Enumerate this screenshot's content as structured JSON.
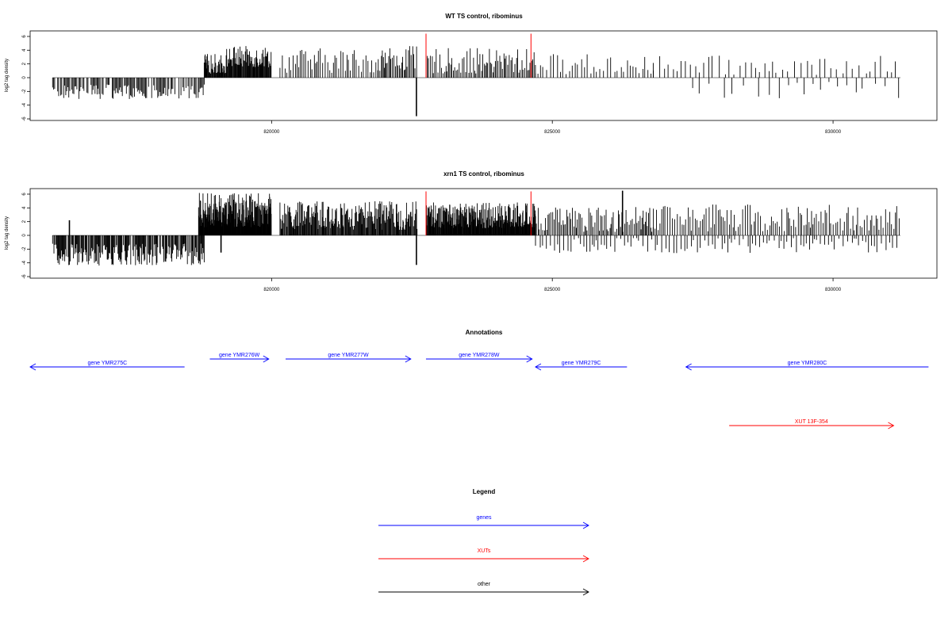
{
  "chart_data": [
    {
      "type": "bar",
      "title": "WT TS control, ribominus",
      "ylabel": "log2 tag density",
      "ylim": [
        -6,
        7
      ],
      "yticks": [
        -6,
        -4,
        -2,
        0,
        2,
        4,
        6
      ],
      "xlim": [
        815700,
        831850
      ],
      "xticks": [
        820000,
        825000,
        830000
      ],
      "xtick_labels": [
        "820000",
        "825000",
        "830000"
      ],
      "marker_lines": [
        822750,
        824620
      ],
      "marker_color": "#ff0000",
      "bar_color": "#000000",
      "negative_extent": {
        "x": [
          816100,
          818800
        ],
        "y": [
          -3.1,
          -1.0
        ]
      },
      "positive_segments": [
        {
          "x": [
            818800,
            819200
          ],
          "y": [
            0.6,
            3.5
          ],
          "step": 10
        },
        {
          "x": [
            819200,
            820000
          ],
          "y": [
            1.5,
            4.6
          ],
          "step": 10
        },
        {
          "x": [
            820150,
            821900
          ],
          "y": [
            0.7,
            4.3
          ],
          "step": 35
        },
        {
          "x": [
            821900,
            822600
          ],
          "y": [
            1.0,
            4.6
          ],
          "step": 22
        },
        {
          "x": [
            822750,
            824700
          ],
          "y": [
            0.6,
            4.3
          ],
          "step": 25
        },
        {
          "x": [
            824700,
            826800
          ],
          "y": [
            0.5,
            3.5
          ],
          "step": 55
        },
        {
          "x": [
            826800,
            831200
          ],
          "y": [
            0.4,
            3.2
          ],
          "step": 95
        }
      ],
      "negative_segments": [
        {
          "x": [
            827500,
            831200
          ],
          "y": [
            -3.0,
            -0.5
          ],
          "step": 190
        }
      ],
      "spikes": [
        {
          "x": 822580,
          "y": -5.6
        }
      ]
    },
    {
      "type": "bar",
      "title": "xrn1 TS control, ribominus",
      "ylabel": "log2 tag density",
      "ylim": [
        -6,
        7
      ],
      "yticks": [
        -6,
        -4,
        -2,
        0,
        2,
        4,
        6
      ],
      "xlim": [
        815700,
        831850
      ],
      "xticks": [
        820000,
        825000,
        830000
      ],
      "xtick_labels": [
        "820000",
        "825000",
        "830000"
      ],
      "marker_lines": [
        822750,
        824620
      ],
      "marker_color": "#ff0000",
      "bar_color": "#000000",
      "negative_extent": {
        "x": [
          816100,
          818800
        ],
        "y": [
          -4.4,
          -1.2
        ]
      },
      "positive_segments": [
        {
          "x": [
            818700,
            820000
          ],
          "y": [
            1.2,
            6.2
          ],
          "step": 6
        },
        {
          "x": [
            820150,
            822600
          ],
          "y": [
            0.8,
            5.0
          ],
          "step": 12
        },
        {
          "x": [
            822750,
            824700
          ],
          "y": [
            1.0,
            4.8
          ],
          "step": 8
        },
        {
          "x": [
            824700,
            826800
          ],
          "y": [
            0.5,
            4.2
          ],
          "step": 25
        },
        {
          "x": [
            826800,
            831200
          ],
          "y": [
            0.6,
            4.5
          ],
          "step": 35
        }
      ],
      "negative_segments": [
        {
          "x": [
            824700,
            831200
          ],
          "y": [
            -2.6,
            -0.4
          ],
          "step": 60
        }
      ],
      "spikes": [
        {
          "x": 816400,
          "y": 2.2
        },
        {
          "x": 822580,
          "y": -4.3
        },
        {
          "x": 826250,
          "y": 6.5
        },
        {
          "x": 819100,
          "y": -2.5
        }
      ]
    }
  ],
  "annotations": {
    "title": "Annotations",
    "items": [
      {
        "label": "gene YMR275C",
        "start": 818450,
        "end": 815700,
        "color": "#0000ff"
      },
      {
        "label": "gene YMR276W",
        "start": 818900,
        "end": 819950,
        "color": "#0000ff"
      },
      {
        "label": "gene YMR277W",
        "start": 820250,
        "end": 822480,
        "color": "#0000ff"
      },
      {
        "label": "gene YMR278W",
        "start": 822750,
        "end": 824640,
        "color": "#0000ff"
      },
      {
        "label": "gene YMR279C",
        "start": 826330,
        "end": 824700,
        "color": "#0000ff"
      },
      {
        "label": "gene YMR280C",
        "start": 831700,
        "end": 827380,
        "color": "#0000ff"
      },
      {
        "label": "XUT 13F-354",
        "start": 828150,
        "end": 831080,
        "color": "#ff0000"
      }
    ]
  },
  "legend": {
    "title": "Legend",
    "items": [
      {
        "label": "genes",
        "color": "#0000ff"
      },
      {
        "label": "XUTs",
        "color": "#ff0000"
      },
      {
        "label": "other",
        "color": "#000000"
      }
    ]
  }
}
